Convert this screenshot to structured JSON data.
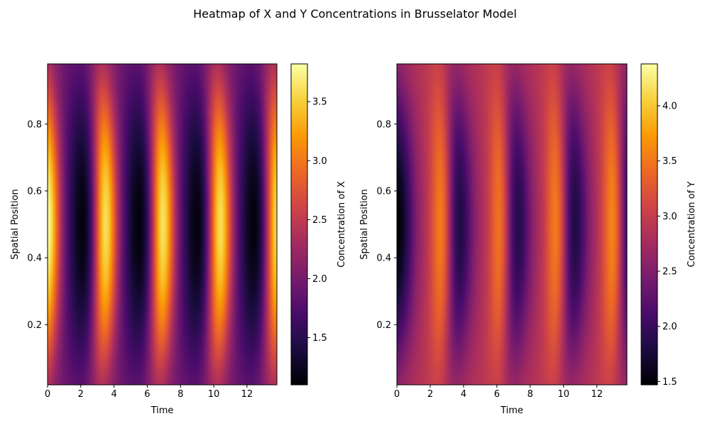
{
  "figure": {
    "title": "Heatmap of X and Y Concentrations in Brusselator Model"
  },
  "colormap": {
    "name": "inferno",
    "stops": [
      "#000004",
      "#1b0c41",
      "#4a0c6b",
      "#781c6d",
      "#a52c60",
      "#cf4446",
      "#ed6925",
      "#fb9b06",
      "#f7d13d",
      "#fcffa4"
    ]
  },
  "chart_data": [
    {
      "type": "heatmap",
      "title": "",
      "xlabel": "Time",
      "ylabel": "Spatial Position",
      "xlim": [
        0,
        13.8
      ],
      "ylim": [
        0.02,
        0.98
      ],
      "xticks": [
        0,
        2,
        4,
        6,
        8,
        10,
        12
      ],
      "yticks": [
        0.2,
        0.4,
        0.6,
        0.8
      ],
      "colorbar_label": "Concentration of X",
      "colorbar_range": [
        1.1,
        3.82
      ],
      "colorbar_ticks": [
        "1.5",
        "2.0",
        "2.5",
        "3.0",
        "3.5"
      ],
      "colorbar_tick_values": [
        1.5,
        2.0,
        2.5,
        3.0,
        3.5
      ],
      "pattern": {
        "period": 3.45,
        "peak_times": [
          0.0,
          3.45,
          6.9,
          10.35,
          13.8
        ],
        "low_times": [
          2.2,
          5.6,
          9.1,
          12.5
        ],
        "peak_value": 3.82,
        "low_value": 1.1,
        "edge_value": 2.0
      }
    },
    {
      "type": "heatmap",
      "title": "",
      "xlabel": "Time",
      "ylabel": "Spatial Position",
      "xlim": [
        0,
        13.8
      ],
      "ylim": [
        0.02,
        0.98
      ],
      "xticks": [
        0,
        2,
        4,
        6,
        8,
        10,
        12
      ],
      "yticks": [
        0.2,
        0.4,
        0.6,
        0.8
      ],
      "colorbar_label": "Concentration of Y",
      "colorbar_range": [
        1.47,
        4.38
      ],
      "colorbar_ticks": [
        "1.5",
        "2.0",
        "2.5",
        "3.0",
        "3.5",
        "4.0"
      ],
      "colorbar_tick_values": [
        1.5,
        2.0,
        2.5,
        3.0,
        3.5,
        4.0
      ],
      "pattern": {
        "period": 3.45,
        "peak_times": [
          2.8,
          6.3,
          9.7,
          13.1
        ],
        "low_times": [
          0.0,
          3.45,
          6.9,
          10.35,
          13.8
        ],
        "peak_value": 4.38,
        "low_value": 1.47,
        "edge_value": 2.9
      }
    }
  ]
}
